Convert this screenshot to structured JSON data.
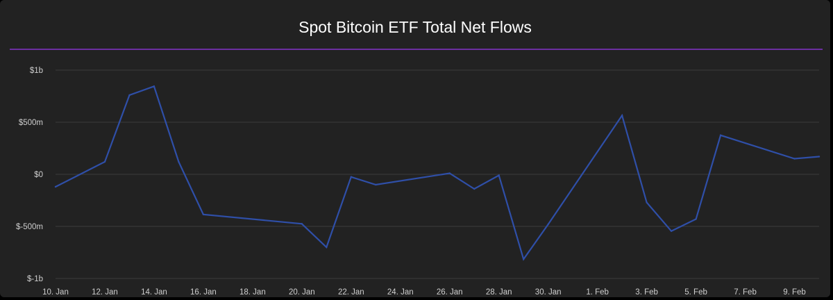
{
  "chart_data": {
    "type": "line",
    "title": "Spot Bitcoin ETF Total Net Flows",
    "xlabel": "",
    "ylabel": "",
    "ylim": [
      -1000,
      1000
    ],
    "y_ticks": [
      1000,
      500,
      0,
      -500,
      -1000
    ],
    "y_tick_labels": [
      "$1b",
      "$500m",
      "$0",
      "$-500m",
      "$-1b"
    ],
    "x_range": [
      "2024-01-10",
      "2024-02-10"
    ],
    "x_tick_dates": [
      "2024-01-10",
      "2024-01-12",
      "2024-01-14",
      "2024-01-16",
      "2024-01-18",
      "2024-01-20",
      "2024-01-22",
      "2024-01-24",
      "2024-01-26",
      "2024-01-28",
      "2024-01-30",
      "2024-02-01",
      "2024-02-03",
      "2024-02-05",
      "2024-02-07",
      "2024-02-09"
    ],
    "x_tick_labels": [
      "10. Jan",
      "12. Jan",
      "14. Jan",
      "16. Jan",
      "18. Jan",
      "20. Jan",
      "22. Jan",
      "24. Jan",
      "26. Jan",
      "28. Jan",
      "30. Jan",
      "1. Feb",
      "3. Feb",
      "5. Feb",
      "7. Feb",
      "9. Feb"
    ],
    "grid": true,
    "series": [
      {
        "color": "#2f4fa8",
        "points": [
          {
            "x": "2024-01-10",
            "y": -120
          },
          {
            "x": "2024-01-12",
            "y": 120
          },
          {
            "x": "2024-01-13",
            "y": 760
          },
          {
            "x": "2024-01-14",
            "y": 845
          },
          {
            "x": "2024-01-15",
            "y": 120
          },
          {
            "x": "2024-01-16",
            "y": -385
          },
          {
            "x": "2024-01-20",
            "y": -475
          },
          {
            "x": "2024-01-21",
            "y": -700
          },
          {
            "x": "2024-01-22",
            "y": -25
          },
          {
            "x": "2024-01-23",
            "y": -100
          },
          {
            "x": "2024-01-26",
            "y": 10
          },
          {
            "x": "2024-01-27",
            "y": -140
          },
          {
            "x": "2024-01-28",
            "y": -10
          },
          {
            "x": "2024-01-29",
            "y": -815
          },
          {
            "x": "2024-01-30",
            "y": -480
          },
          {
            "x": "2024-02-02",
            "y": 565
          },
          {
            "x": "2024-02-03",
            "y": -270
          },
          {
            "x": "2024-02-04",
            "y": -545
          },
          {
            "x": "2024-02-05",
            "y": -430
          },
          {
            "x": "2024-02-06",
            "y": 375
          },
          {
            "x": "2024-02-09",
            "y": 150
          },
          {
            "x": "2024-02-10",
            "y": 170
          }
        ]
      }
    ]
  },
  "colors": {
    "background": "#222222",
    "gridline": "#3c3c3c",
    "divider": "#6b2fa0",
    "line": "#2f4fa8",
    "text": "#cfcfcf"
  }
}
